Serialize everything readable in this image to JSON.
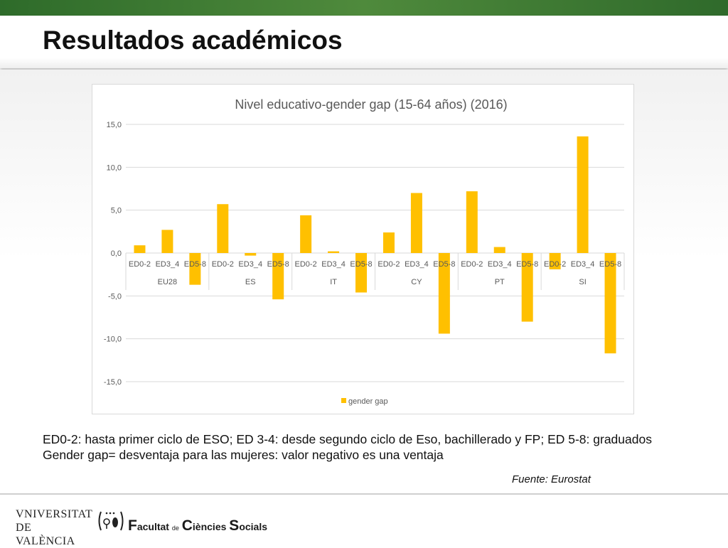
{
  "header": {
    "title": "Resultados académicos"
  },
  "colors": {
    "bar": "#FFC000",
    "grid": "#d9d9d9",
    "top_bar": "#3a7a32"
  },
  "chart_data": {
    "type": "bar",
    "title": "Nivel educativo-gender gap (15-64 años) (2016)",
    "xlabel": "",
    "ylabel": "",
    "ylim": [
      -15,
      15
    ],
    "yticks": [
      15,
      10,
      5,
      0,
      -5,
      -10,
      -15
    ],
    "ytick_labels": [
      "15,0",
      "10,0",
      "5,0",
      "0,0",
      "-5,0",
      "-10,0",
      "-15,0"
    ],
    "grid": true,
    "legend_position": "bottom",
    "groups": [
      {
        "label": "EU28",
        "categories": [
          "ED0-2",
          "ED3_4",
          "ED5-8"
        ],
        "values": [
          0.9,
          2.7,
          -3.7
        ]
      },
      {
        "label": "ES",
        "categories": [
          "ED0-2",
          "ED3_4",
          "ED5-8"
        ],
        "values": [
          5.7,
          -0.3,
          -5.4
        ]
      },
      {
        "label": "IT",
        "categories": [
          "ED0-2",
          "ED3_4",
          "ED5-8"
        ],
        "values": [
          4.4,
          0.2,
          -4.6
        ]
      },
      {
        "label": "CY",
        "categories": [
          "ED0-2",
          "ED3_4",
          "ED5-8"
        ],
        "values": [
          2.4,
          7.0,
          -9.4
        ]
      },
      {
        "label": "PT",
        "categories": [
          "ED0-2",
          "ED3_4",
          "ED5-8"
        ],
        "values": [
          7.2,
          0.7,
          -8.0
        ]
      },
      {
        "label": "SI",
        "categories": [
          "ED0-2",
          "ED3_4",
          "ED5-8"
        ],
        "values": [
          -1.9,
          13.6,
          -11.7
        ]
      }
    ],
    "series": [
      {
        "name": "gender gap",
        "color": "#FFC000"
      }
    ]
  },
  "notes": {
    "line1": "ED0-2: hasta primer ciclo de ESO; ED 3-4: desde segundo ciclo de Eso, bachillerado y FP; ED 5-8: graduados",
    "line2": "Gender gap= desventaja para las mujeres: valor negativo es una ventaja"
  },
  "source": "Fuente: Eurostat",
  "footer": {
    "university_line1": "VNIVERSITAT",
    "university_line2": "DE VALÈNCIA",
    "faculty_f": "F",
    "faculty_word1": "acultat",
    "faculty_de": "de",
    "faculty_c": "C",
    "faculty_word2": "iències",
    "faculty_s": "S",
    "faculty_word3": "ocials"
  }
}
